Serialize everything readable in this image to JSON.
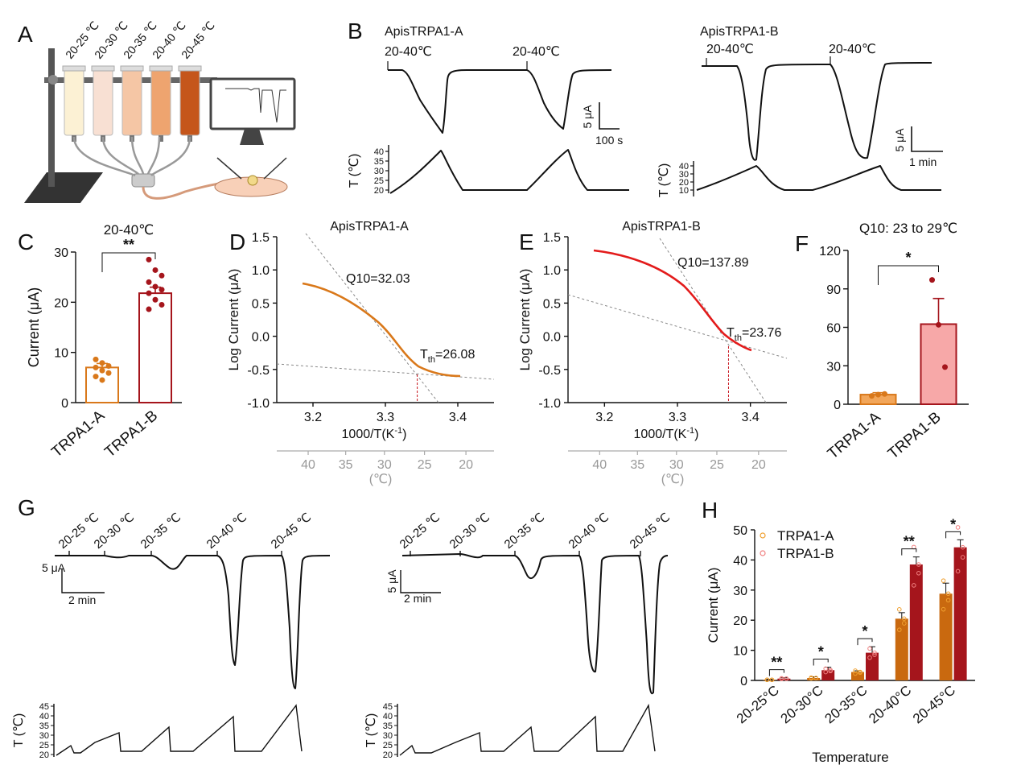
{
  "panels": {
    "A": "A",
    "B": "B",
    "C": "C",
    "D": "D",
    "E": "E",
    "F": "F",
    "G": "G",
    "H": "H"
  },
  "colors": {
    "trpa1_a": "#d9781a",
    "trpa1_b": "#a5151c",
    "trpa1_b_light": "#f7a8a8",
    "dash": "#888888"
  },
  "panel_a": {
    "tube_labels": [
      "20-25 ℃",
      "20-30 ℃",
      "20-35 ℃",
      "20-40 ℃",
      "20-45 ℃"
    ],
    "tube_colors": [
      "#fcf1d4",
      "#f8e0d3",
      "#f5c6a5",
      "#eea46f",
      "#c5561b"
    ]
  },
  "panel_b": {
    "traces": [
      {
        "title": "ApisTRPA1-A",
        "stim1": "20-40℃",
        "stim2": "20-40℃",
        "scale_y": "5 μA",
        "scale_x": "100 s",
        "t_label": "T (℃)",
        "t_ticks": [
          "40",
          "35",
          "30",
          "25",
          "20"
        ]
      },
      {
        "title": "ApisTRPA1-B",
        "stim1": "20-40℃",
        "stim2": "20-40℃",
        "scale_y": "5 μA",
        "scale_x": "1 min",
        "t_label": "T (℃)",
        "t_ticks": [
          "40",
          "30",
          "20",
          "10"
        ]
      }
    ]
  },
  "chart_data": [
    {
      "panel": "C",
      "type": "bar",
      "title": "20-40℃",
      "significance": "**",
      "categories": [
        "TRPA1-A",
        "TRPA1-B"
      ],
      "values": [
        7.0,
        21.8
      ],
      "errors": [
        0.8,
        1.2
      ],
      "points": [
        [
          8.6,
          7.9,
          7.3,
          7.0,
          6.4,
          5.9,
          5.2,
          4.5
        ],
        [
          28.5,
          26.4,
          25.3,
          24.0,
          23.1,
          22.5,
          21.8,
          20.5,
          19.5,
          18.6
        ]
      ],
      "ylabel": "Current (μA)",
      "ylim": [
        0,
        30
      ],
      "yticks": [
        "0",
        "10",
        "20",
        "30"
      ]
    },
    {
      "panel": "D",
      "type": "line",
      "title": "ApisTRPA1-A",
      "xlabel_main": "1000/T(K",
      "xlabel_sup": "-1",
      "xlabel_end": ")",
      "ylabel": "Log Current (μA)",
      "xlim": [
        3.15,
        3.45
      ],
      "ylim": [
        -1.0,
        1.5
      ],
      "xticks": [
        "3.2",
        "3.3",
        "3.4"
      ],
      "yticks": [
        "-1.0",
        "-0.5",
        "0.0",
        "0.5",
        "1.0",
        "1.5"
      ],
      "temp_ticks": [
        "40",
        "35",
        "30",
        "25",
        "20"
      ],
      "temp_unit": "(℃)",
      "q10_label": "Q10=32.03",
      "th_base": "T",
      "th_sub": "th",
      "th_value": "=26.08",
      "x_th": 3.344
    },
    {
      "panel": "E",
      "type": "line",
      "title": "ApisTRPA1-B",
      "xlabel_main": "1000/T(K",
      "xlabel_sup": "-1",
      "xlabel_end": ")",
      "ylabel": "Log Current (μA)",
      "xlim": [
        3.15,
        3.45
      ],
      "ylim": [
        -1.0,
        1.5
      ],
      "xticks": [
        "3.2",
        "3.3",
        "3.4"
      ],
      "yticks": [
        "-1.0",
        "-0.5",
        "0.0",
        "0.5",
        "1.0",
        "1.5"
      ],
      "temp_ticks": [
        "40",
        "35",
        "30",
        "25",
        "20"
      ],
      "temp_unit": "(℃)",
      "q10_label": "Q10=137.89",
      "th_base": "T",
      "th_sub": "th",
      "th_value": "=23.76",
      "x_th": 3.37
    },
    {
      "panel": "F",
      "type": "bar",
      "title": "Q10: 23 to 29℃",
      "significance": "*",
      "categories": [
        "TRPA1-A",
        "TRPA1-B"
      ],
      "values": [
        7.5,
        62.5
      ],
      "errors": [
        1.5,
        20
      ],
      "points": [
        [
          6.5,
          7.5,
          8.0
        ],
        [
          97,
          62,
          29
        ]
      ],
      "ylabel": "",
      "ylim": [
        0,
        120
      ],
      "yticks": [
        "0",
        "30",
        "60",
        "90",
        "120"
      ]
    },
    {
      "panel": "H",
      "type": "bar",
      "xlabel": "Temperature",
      "ylabel": "Current (μA)",
      "ylim": [
        0,
        50
      ],
      "yticks": [
        "0",
        "10",
        "20",
        "30",
        "40",
        "50"
      ],
      "categories": [
        "20-25°C",
        "20-30°C",
        "20-35°C",
        "20-40°C",
        "20-45°C"
      ],
      "significance": [
        "**",
        "*",
        "*",
        "**",
        "*"
      ],
      "series": [
        {
          "name": "TRPA1-A",
          "values": [
            0.2,
            0.8,
            2.8,
            20.5,
            28.8
          ],
          "errors": [
            0.2,
            0.4,
            0.4,
            2.0,
            3.5
          ]
        },
        {
          "name": "TRPA1-B",
          "values": [
            0.6,
            3.4,
            9.2,
            38.5,
            44.2
          ],
          "errors": [
            0.3,
            1.0,
            2.0,
            2.5,
            2.5
          ]
        }
      ]
    }
  ],
  "panel_g": {
    "temp_labels": [
      "20-25 ℃",
      "20-30 ℃",
      "20-35 ℃",
      "20-40 ℃",
      "20-45 ℃"
    ],
    "scale_y": "5 μA",
    "scale_x": "2 min",
    "t_label": "T (℃)",
    "t_ticks": [
      "45",
      "40",
      "35",
      "30",
      "25",
      "20"
    ]
  }
}
